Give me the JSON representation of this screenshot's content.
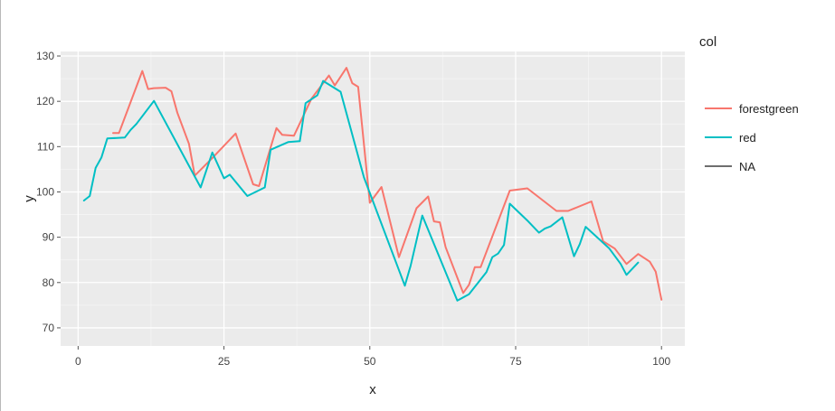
{
  "chart_data": {
    "type": "line",
    "title": "",
    "xlabel": "x",
    "ylabel": "y",
    "xlim": [
      -3,
      104
    ],
    "ylim": [
      66,
      131
    ],
    "x_ticks": [
      0,
      25,
      50,
      75,
      100
    ],
    "y_ticks": [
      70,
      80,
      90,
      100,
      110,
      120,
      130
    ],
    "grid": true,
    "legend": {
      "title": "col",
      "position": "right"
    },
    "series": [
      {
        "name": "forestgreen",
        "color": "#F8766D",
        "points": [
          [
            6,
            113
          ],
          [
            7,
            113
          ],
          [
            11,
            126.7
          ],
          [
            12,
            122.7
          ],
          [
            13,
            122.9
          ],
          [
            15,
            123
          ],
          [
            16,
            122.2
          ],
          [
            17,
            117.5
          ],
          [
            19,
            110.6
          ],
          [
            20,
            103.6
          ],
          [
            23,
            107.5
          ],
          [
            27,
            112.9
          ],
          [
            30,
            101.7
          ],
          [
            31,
            101.3
          ],
          [
            34,
            114.1
          ],
          [
            35,
            112.6
          ],
          [
            37,
            112.4
          ],
          [
            40,
            120.6
          ],
          [
            43,
            125.7
          ],
          [
            44,
            123.5
          ],
          [
            46,
            127.4
          ],
          [
            47,
            124
          ],
          [
            48,
            123.2
          ],
          [
            50,
            97.6
          ],
          [
            52,
            101.1
          ],
          [
            55,
            85.6
          ],
          [
            58,
            96.4
          ],
          [
            60,
            99
          ],
          [
            61,
            93.5
          ],
          [
            62,
            93.3
          ],
          [
            63,
            87.8
          ],
          [
            66,
            77.7
          ],
          [
            67,
            79.5
          ],
          [
            68,
            83.4
          ],
          [
            69,
            83.4
          ],
          [
            74,
            100.3
          ],
          [
            77,
            100.8
          ],
          [
            82,
            95.8
          ],
          [
            84,
            95.8
          ],
          [
            88,
            97.9
          ],
          [
            90,
            89.1
          ],
          [
            92,
            87.5
          ],
          [
            94,
            84.1
          ],
          [
            96,
            86.3
          ],
          [
            98,
            84.6
          ],
          [
            99,
            82.4
          ],
          [
            100,
            76.2
          ]
        ]
      },
      {
        "name": "red",
        "color": "#00BFC4",
        "points": [
          [
            1,
            98.1
          ],
          [
            2,
            99.1
          ],
          [
            3,
            105.3
          ],
          [
            4,
            107.6
          ],
          [
            5,
            111.8
          ],
          [
            8,
            112
          ],
          [
            9,
            113.7
          ],
          [
            10,
            115
          ],
          [
            13,
            120.1
          ],
          [
            21,
            101
          ],
          [
            23,
            108.7
          ],
          [
            25,
            103
          ],
          [
            26,
            103.8
          ],
          [
            29,
            99.1
          ],
          [
            32,
            101
          ],
          [
            33,
            109.3
          ],
          [
            36,
            111
          ],
          [
            38,
            111.2
          ],
          [
            39,
            119.6
          ],
          [
            41,
            121.3
          ],
          [
            42,
            124.5
          ],
          [
            45,
            122.1
          ],
          [
            49,
            103.2
          ],
          [
            56,
            79.3
          ],
          [
            57,
            83.7
          ],
          [
            59,
            94.8
          ],
          [
            65,
            76
          ],
          [
            67,
            77.4
          ],
          [
            70,
            82.3
          ],
          [
            71,
            85.6
          ],
          [
            72,
            86.4
          ],
          [
            73,
            88.3
          ],
          [
            74,
            97.4
          ],
          [
            77,
            93.7
          ],
          [
            79,
            91
          ],
          [
            80,
            91.9
          ],
          [
            81,
            92.4
          ],
          [
            83,
            94.4
          ],
          [
            85,
            85.8
          ],
          [
            86,
            88.5
          ],
          [
            87,
            92.3
          ],
          [
            91,
            87.6
          ],
          [
            93,
            84.1
          ],
          [
            94,
            81.7
          ],
          [
            96,
            84.4
          ]
        ]
      },
      {
        "name": "NA",
        "color": "#6e6e6e",
        "points": []
      }
    ]
  }
}
